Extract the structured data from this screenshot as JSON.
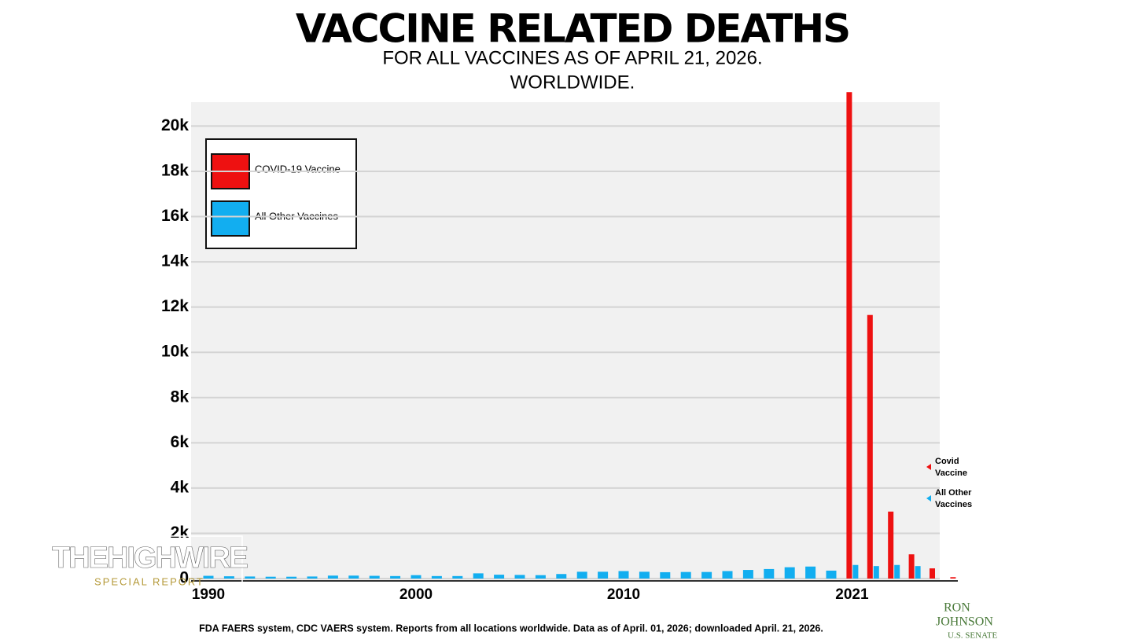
{
  "chart_data": {
    "type": "bar",
    "title": "VACCINE RELATED DEATHS",
    "subtitle": [
      "FOR ALL VACCINES AS OF APRIL 21, 2026.",
      "WORLDWIDE."
    ],
    "categories": [
      "1990",
      null,
      null,
      null,
      null,
      null,
      null,
      null,
      null,
      null,
      "2000",
      null,
      null,
      null,
      null,
      null,
      null,
      null,
      null,
      null,
      "2010",
      null,
      null,
      null,
      null,
      null,
      null,
      null,
      null,
      null,
      null,
      "2021",
      null,
      null,
      null,
      null,
      null
    ],
    "series": [
      {
        "name": "COVID-19 Vaccine",
        "color": "#ee1111",
        "values": [
          null,
          null,
          null,
          null,
          null,
          null,
          null,
          null,
          null,
          null,
          null,
          null,
          null,
          null,
          null,
          null,
          null,
          null,
          null,
          null,
          null,
          null,
          null,
          null,
          null,
          null,
          null,
          null,
          null,
          null,
          null,
          21500,
          11650,
          2960,
          1070,
          450,
          60
        ]
      },
      {
        "name": "All Other Vaccines",
        "color": "#12aef0",
        "values": [
          120,
          100,
          90,
          80,
          80,
          90,
          130,
          130,
          120,
          110,
          150,
          110,
          110,
          230,
          170,
          160,
          150,
          200,
          300,
          300,
          330,
          300,
          280,
          290,
          290,
          330,
          380,
          420,
          500,
          530,
          350,
          600,
          550,
          600,
          550,
          null,
          null
        ]
      }
    ],
    "ylim": [
      0,
      20500
    ],
    "yticks": [
      0,
      {
        "value": 2000,
        "label": "2k"
      },
      {
        "value": 4000,
        "label": "4k"
      },
      {
        "value": 6000,
        "label": "6k"
      },
      {
        "value": 8000,
        "label": "8k"
      },
      {
        "value": 10000,
        "label": "10k"
      },
      {
        "value": 12000,
        "label": "12k"
      },
      {
        "value": 14000,
        "label": "14k"
      },
      {
        "value": 16000,
        "label": "16k"
      },
      {
        "value": 18000,
        "label": "18k"
      },
      {
        "value": 20000,
        "label": "20k"
      }
    ],
    "grid": true,
    "legend": "upper left",
    "side_labels": [
      "Covid Vaccine",
      "All Other Vaccines"
    ],
    "source": "FDA FAERS system, CDC VAERS system. Reports from all locations worldwide. Data as of April. 01, 2026; downloaded April. 21, 2026."
  },
  "overlay": {
    "show": "THEHIGHWIRE",
    "tagline": "SPECIAL REPORT",
    "sponsor": [
      "RON",
      "JOHNSON",
      "U.S. SENATE"
    ]
  }
}
